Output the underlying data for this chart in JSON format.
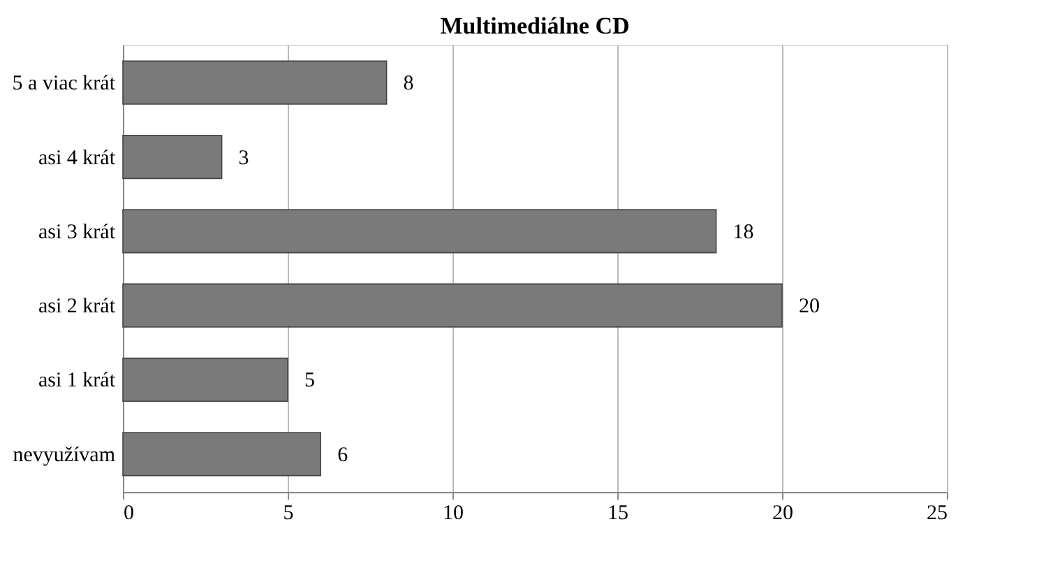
{
  "chart_data": {
    "type": "bar",
    "orientation": "horizontal",
    "title": "Multimediálne CD",
    "categories": [
      "5 a viac krát",
      "asi 4 krát",
      "asi 3 krát",
      "asi 2 krát",
      "asi 1 krát",
      "nevyužívam"
    ],
    "values": [
      8,
      3,
      18,
      20,
      5,
      6
    ],
    "color": "#7a7a7a",
    "xlim": [
      0,
      25
    ],
    "xticks": [
      0,
      5,
      10,
      15,
      20,
      25
    ],
    "grid": "x",
    "data_labels": true
  }
}
